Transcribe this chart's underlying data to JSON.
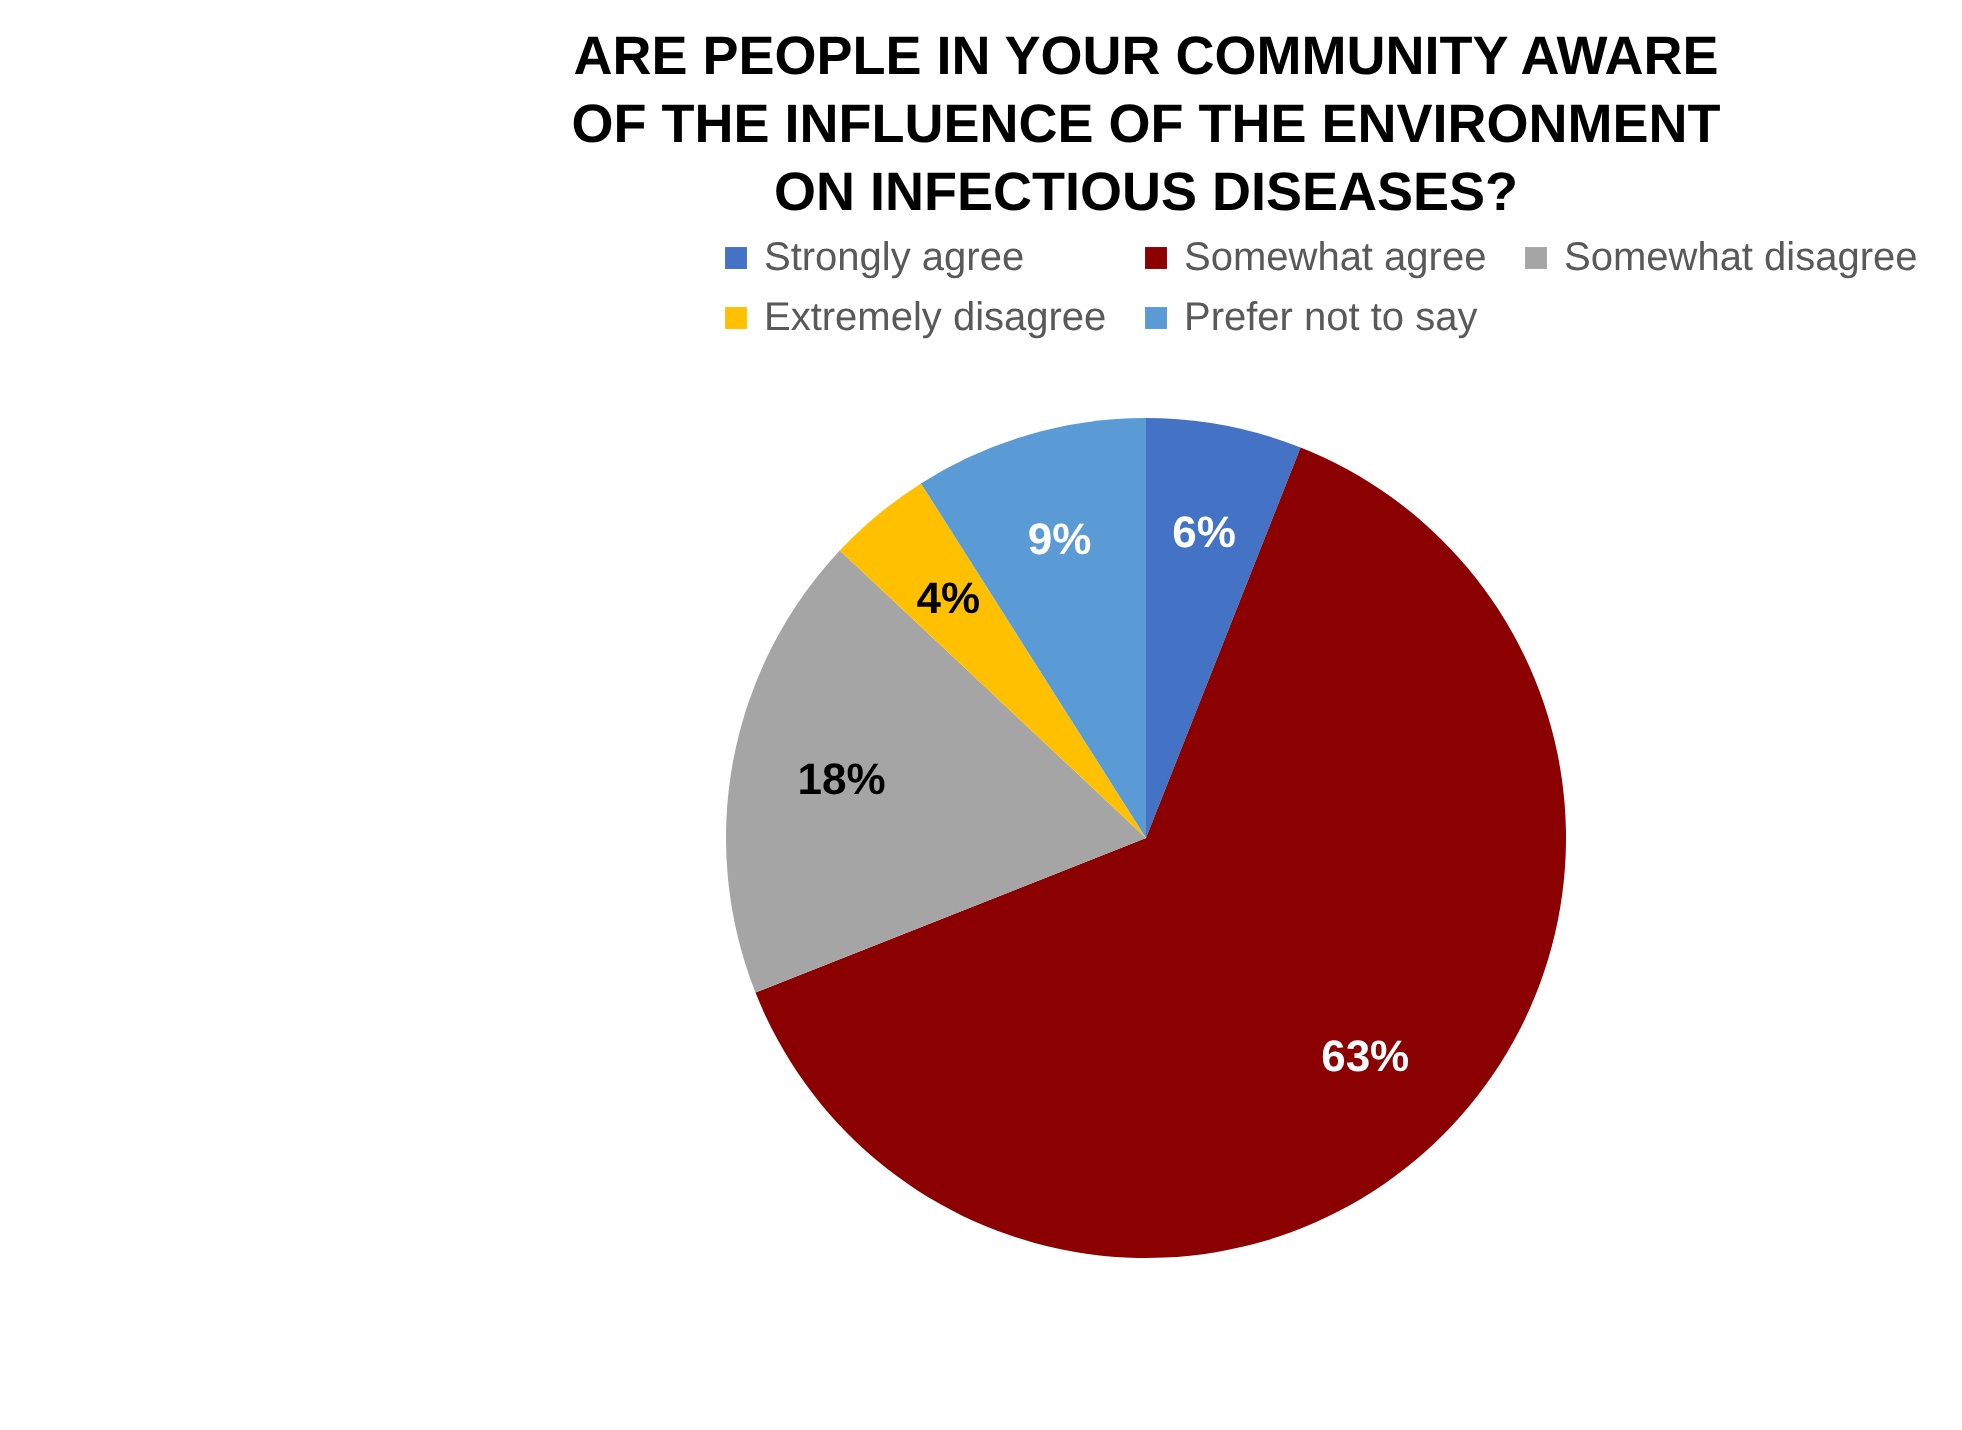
{
  "chart_data": {
    "type": "pie",
    "title": "ARE PEOPLE IN YOUR COMMUNITY AWARE\nOF THE INFLUENCE OF THE ENVIRONMENT\nON INFECTIOUS DISEASES?",
    "categories": [
      "Strongly agree",
      "Somewhat agree",
      "Somewhat disagree",
      "Extremely disagree",
      "Prefer not to say"
    ],
    "values": [
      6,
      63,
      18,
      4,
      9
    ],
    "value_labels": [
      "6%",
      "63%",
      "18%",
      "4%",
      "9%"
    ],
    "colors": [
      "#4472c4",
      "#8b0000",
      "#a5a5a5",
      "#ffc000",
      "#5b9bd5"
    ],
    "legend": "top"
  }
}
